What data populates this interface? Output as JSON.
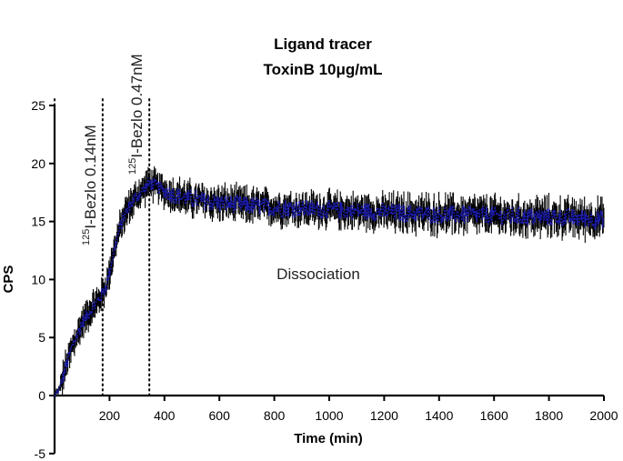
{
  "chart_data": {
    "type": "line",
    "title": [
      "Ligand tracer",
      "ToxinB 10μg/mL"
    ],
    "xlabel": "Time (min)",
    "ylabel": "CPS",
    "xlim": [
      0,
      2000
    ],
    "ylim": [
      -5,
      25
    ],
    "x_ticks": [
      200,
      400,
      600,
      800,
      1000,
      1200,
      1400,
      1600,
      1800,
      2000
    ],
    "y_ticks": [
      -5,
      0,
      5,
      10,
      15,
      20,
      25
    ],
    "grid": false,
    "legend": "none",
    "series": [
      {
        "color": "#1a1aa8",
        "error_color": "#000000",
        "x": [
          0,
          20,
          40,
          60,
          80,
          100,
          120,
          140,
          160,
          175,
          190,
          210,
          230,
          250,
          270,
          290,
          310,
          330,
          345,
          360,
          380,
          400,
          450,
          500,
          600,
          700,
          800,
          900,
          1000,
          1100,
          1200,
          1300,
          1400,
          1500,
          1600,
          1700,
          1800,
          1900,
          2000
        ],
        "y": [
          0,
          0.6,
          2.4,
          3.9,
          5.1,
          6.2,
          7.0,
          7.6,
          8.2,
          8.8,
          9.6,
          11.8,
          13.8,
          15.3,
          16.2,
          16.9,
          17.4,
          17.9,
          18.3,
          18.2,
          17.9,
          17.6,
          17.2,
          16.9,
          16.6,
          16.4,
          16.2,
          16.1,
          16.0,
          15.9,
          15.8,
          15.7,
          15.6,
          15.6,
          15.5,
          15.4,
          15.4,
          15.3,
          15.2
        ],
        "noise": 1.0
      }
    ],
    "markers": [
      {
        "x": 0,
        "label_prefix": "",
        "label": ""
      },
      {
        "x": 175,
        "label_prefix": "125",
        "label": "I-Bezlo 0.14nM"
      },
      {
        "x": 345,
        "label_prefix": "125",
        "label": "I-Bezlo 0.47nM"
      }
    ],
    "annotations": [
      {
        "text": "Dissociation",
        "x": 1000,
        "y": 10.5
      }
    ]
  }
}
